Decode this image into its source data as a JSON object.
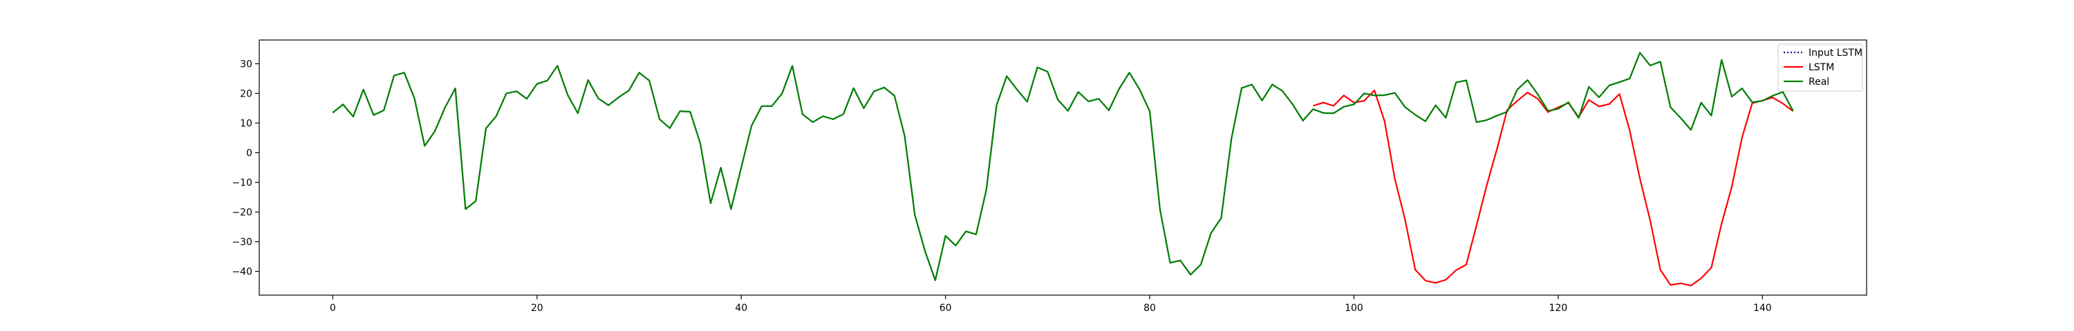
{
  "chart_data": {
    "type": "line",
    "title": "",
    "xlabel": "",
    "ylabel": "",
    "xlim": [
      -7.2,
      150.2
    ],
    "ylim": [
      -48,
      38
    ],
    "xticks": [
      0,
      20,
      40,
      60,
      80,
      100,
      120,
      140
    ],
    "yticks": [
      -40,
      -30,
      -20,
      -10,
      0,
      10,
      20,
      30
    ],
    "grid": false,
    "legend_position": "top-right",
    "series": [
      {
        "name": "Input LSTM",
        "color": "#00008b",
        "style": "dotted",
        "x_start": 0,
        "values": [
          13.5,
          16.3,
          12.2,
          21.3,
          12.7,
          14.3,
          26.0,
          27.0,
          18.3,
          2.3,
          7.3,
          15.3,
          21.7,
          -19.0,
          -16.3,
          8.2,
          12.3,
          20.0,
          20.7,
          18.2,
          23.2,
          24.3,
          29.3,
          19.5,
          13.3,
          24.5,
          18.3,
          16.0,
          18.7,
          21.0,
          27.0,
          24.3,
          11.3,
          8.3,
          14.0,
          13.8,
          3.0,
          -17.0,
          -5.0,
          -19.0,
          -5.0,
          9.0,
          15.7,
          15.7,
          20.0,
          29.3,
          13.0,
          10.3,
          12.3,
          11.3,
          13.0,
          21.8,
          15.0,
          20.7,
          22.0,
          19.2,
          5.7,
          -21.0,
          -33.2,
          -43.0,
          -28.0,
          -31.3,
          -26.5,
          -27.5,
          -12.5,
          16.0,
          25.8,
          21.3,
          17.2,
          28.8,
          27.3,
          17.9,
          14.1,
          20.5,
          17.3,
          18.2,
          14.3,
          21.5,
          27.0,
          21.4,
          14.0,
          -19.0,
          -37.1,
          -36.3,
          -41.1,
          -37.7,
          -27.1,
          -22.0,
          4.7,
          21.8,
          23.0,
          17.6,
          23.0,
          20.8,
          16.3,
          10.8,
          14.7,
          13.4,
          13.3,
          15.5,
          16.3,
          20.0,
          19.3,
          19.4,
          20.2,
          15.4,
          12.8,
          10.6,
          16.0,
          11.8,
          23.7,
          24.4,
          10.3,
          11.0,
          12.5,
          13.8,
          21.3,
          24.5,
          19.7,
          14.1,
          14.8,
          17.0,
          11.7,
          22.2,
          18.7,
          22.7,
          23.8,
          25.0,
          33.7,
          29.4,
          30.7,
          15.3,
          11.7,
          7.7,
          16.9,
          12.5,
          31.3,
          18.9,
          21.7,
          17.0,
          17.5,
          19.2,
          20.5,
          14.1
        ]
      },
      {
        "name": "LSTM",
        "color": "#ff0000",
        "style": "solid",
        "x_start": 96,
        "values": [
          15.8,
          16.9,
          15.8,
          19.3,
          16.9,
          17.5,
          21.0,
          10.6,
          -8.8,
          -22.5,
          -39.4,
          -43.1,
          -43.9,
          -42.8,
          -39.6,
          -37.7,
          -24.5,
          -11.0,
          1.2,
          14.4,
          17.5,
          20.3,
          18.2,
          13.7,
          15.3,
          16.8,
          12.0,
          17.8,
          15.6,
          16.4,
          19.8,
          7.5,
          -8.7,
          -22.7,
          -39.4,
          -44.6,
          -44.0,
          -44.8,
          -42.3,
          -38.7,
          -23.9,
          -11.5,
          5.1,
          16.7,
          17.6,
          18.6,
          16.6,
          14.0
        ]
      },
      {
        "name": "Real",
        "color": "#008000",
        "style": "solid",
        "x_start": 0,
        "values": [
          13.5,
          16.3,
          12.2,
          21.3,
          12.7,
          14.3,
          26.0,
          27.0,
          18.3,
          2.3,
          7.3,
          15.3,
          21.7,
          -19.0,
          -16.3,
          8.2,
          12.3,
          20.0,
          20.7,
          18.2,
          23.2,
          24.3,
          29.3,
          19.5,
          13.3,
          24.5,
          18.3,
          16.0,
          18.7,
          21.0,
          27.0,
          24.3,
          11.3,
          8.3,
          14.0,
          13.8,
          3.0,
          -17.0,
          -5.0,
          -19.0,
          -5.0,
          9.0,
          15.7,
          15.7,
          20.0,
          29.3,
          13.0,
          10.3,
          12.3,
          11.3,
          13.0,
          21.8,
          15.0,
          20.7,
          22.0,
          19.2,
          5.7,
          -21.0,
          -33.2,
          -43.0,
          -28.0,
          -31.3,
          -26.5,
          -27.5,
          -12.5,
          16.0,
          25.8,
          21.3,
          17.2,
          28.8,
          27.3,
          17.9,
          14.1,
          20.5,
          17.3,
          18.2,
          14.3,
          21.5,
          27.0,
          21.4,
          14.0,
          -19.0,
          -37.1,
          -36.3,
          -41.1,
          -37.7,
          -27.1,
          -22.0,
          4.7,
          21.8,
          23.0,
          17.6,
          23.0,
          20.8,
          16.3,
          10.8,
          14.7,
          13.4,
          13.3,
          15.5,
          16.3,
          20.0,
          19.3,
          19.4,
          20.2,
          15.4,
          12.8,
          10.6,
          16.0,
          11.8,
          23.7,
          24.4,
          10.3,
          11.0,
          12.5,
          13.8,
          21.3,
          24.5,
          19.7,
          14.1,
          14.8,
          17.0,
          11.7,
          22.2,
          18.7,
          22.7,
          23.8,
          25.0,
          33.7,
          29.4,
          30.7,
          15.3,
          11.7,
          7.7,
          16.9,
          12.5,
          31.3,
          18.9,
          21.7,
          17.0,
          17.5,
          19.2,
          20.5,
          14.1
        ]
      }
    ]
  }
}
